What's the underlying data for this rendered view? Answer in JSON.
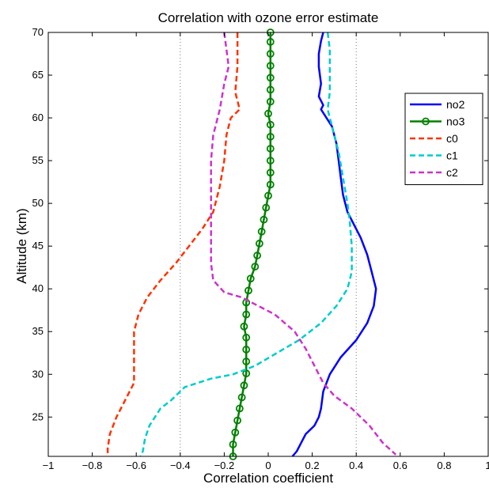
{
  "chart_data": {
    "type": "line",
    "title": "Correlation with ozone error estimate",
    "xlabel": "Correlation coefficient",
    "ylabel": "Altitude (km)",
    "xlim": [
      -1,
      1
    ],
    "ylim": [
      20.4,
      70
    ],
    "xticks": [
      -1,
      -0.8,
      -0.6,
      -0.4,
      -0.2,
      0,
      0.2,
      0.4,
      0.6,
      0.8,
      1
    ],
    "xtick_labels": [
      "−1",
      "−0.8",
      "−0.6",
      "−0.4",
      "−0.2",
      "0",
      "0.2",
      "0.4",
      "0.6",
      "0.8",
      "1"
    ],
    "yticks": [
      25,
      30,
      35,
      40,
      45,
      50,
      55,
      60,
      65,
      70
    ],
    "ytick_labels": [
      "25",
      "30",
      "35",
      "40",
      "45",
      "50",
      "55",
      "60",
      "65",
      "70"
    ],
    "vertical_reference_lines": [
      -0.4,
      0.4
    ],
    "grid": false,
    "legend_position": "top-right",
    "series": [
      {
        "name": "no2",
        "color": "#0000ff",
        "style": "solid",
        "marker": "none",
        "points": [
          [
            0.25,
            70
          ],
          [
            0.24,
            69
          ],
          [
            0.23,
            67.5
          ],
          [
            0.23,
            66
          ],
          [
            0.24,
            64
          ],
          [
            0.23,
            62.5
          ],
          [
            0.25,
            61.5
          ],
          [
            0.24,
            61
          ],
          [
            0.29,
            59
          ],
          [
            0.31,
            57
          ],
          [
            0.32,
            55
          ],
          [
            0.33,
            53
          ],
          [
            0.34,
            51
          ],
          [
            0.36,
            49
          ],
          [
            0.38,
            48
          ],
          [
            0.42,
            46
          ],
          [
            0.45,
            44
          ],
          [
            0.47,
            42
          ],
          [
            0.49,
            40
          ],
          [
            0.48,
            38
          ],
          [
            0.45,
            36
          ],
          [
            0.4,
            34
          ],
          [
            0.33,
            32
          ],
          [
            0.28,
            30
          ],
          [
            0.25,
            28
          ],
          [
            0.24,
            26
          ],
          [
            0.23,
            25
          ],
          [
            0.21,
            24
          ],
          [
            0.17,
            23
          ],
          [
            0.15,
            22
          ],
          [
            0.13,
            21
          ],
          [
            0.11,
            20.4
          ]
        ]
      },
      {
        "name": "no3",
        "color": "#008000",
        "style": "solid",
        "marker": "circle",
        "points": [
          [
            0.01,
            70
          ],
          [
            0.01,
            68.9
          ],
          [
            0.01,
            67.5
          ],
          [
            0.01,
            66.1
          ],
          [
            0.01,
            64.7
          ],
          [
            0.01,
            63.3
          ],
          [
            0.01,
            61.9
          ],
          [
            0,
            60.5
          ],
          [
            0.01,
            59.2
          ],
          [
            0.01,
            57.8
          ],
          [
            0.01,
            56.4
          ],
          [
            0.01,
            55
          ],
          [
            0.01,
            53.6
          ],
          [
            0.01,
            52.2
          ],
          [
            0,
            50.9
          ],
          [
            -0.01,
            49.5
          ],
          [
            -0.02,
            48.1
          ],
          [
            -0.03,
            46.7
          ],
          [
            -0.04,
            45.3
          ],
          [
            -0.05,
            43.9
          ],
          [
            -0.06,
            42.6
          ],
          [
            -0.08,
            41.2
          ],
          [
            -0.09,
            39.8
          ],
          [
            -0.1,
            38.4
          ],
          [
            -0.1,
            37
          ],
          [
            -0.11,
            35.6
          ],
          [
            -0.1,
            34.3
          ],
          [
            -0.1,
            32.9
          ],
          [
            -0.1,
            31.5
          ],
          [
            -0.1,
            30.1
          ],
          [
            -0.11,
            28.7
          ],
          [
            -0.12,
            27.3
          ],
          [
            -0.13,
            26
          ],
          [
            -0.14,
            24.6
          ],
          [
            -0.15,
            23.2
          ],
          [
            -0.16,
            21.8
          ],
          [
            -0.16,
            20.4
          ]
        ]
      },
      {
        "name": "c0",
        "color": "#ff3300",
        "style": "dashed",
        "marker": "none",
        "points": [
          [
            -0.14,
            70
          ],
          [
            -0.14,
            66
          ],
          [
            -0.15,
            63
          ],
          [
            -0.13,
            61
          ],
          [
            -0.17,
            60
          ],
          [
            -0.19,
            58
          ],
          [
            -0.2,
            55
          ],
          [
            -0.22,
            52
          ],
          [
            -0.25,
            49
          ],
          [
            -0.3,
            47
          ],
          [
            -0.36,
            45
          ],
          [
            -0.42,
            43
          ],
          [
            -0.49,
            41
          ],
          [
            -0.55,
            39
          ],
          [
            -0.59,
            37
          ],
          [
            -0.61,
            35
          ],
          [
            -0.61,
            32
          ],
          [
            -0.61,
            29
          ],
          [
            -0.65,
            27
          ],
          [
            -0.69,
            25
          ],
          [
            -0.72,
            23
          ],
          [
            -0.73,
            21.3
          ],
          [
            -0.73,
            20.4
          ]
        ]
      },
      {
        "name": "c1",
        "color": "#00cccc",
        "style": "dashed",
        "marker": "none",
        "points": [
          [
            0.27,
            70
          ],
          [
            0.28,
            68
          ],
          [
            0.28,
            65
          ],
          [
            0.28,
            63
          ],
          [
            0.27,
            61
          ],
          [
            0.3,
            58
          ],
          [
            0.32,
            56
          ],
          [
            0.34,
            53
          ],
          [
            0.36,
            50
          ],
          [
            0.37,
            48
          ],
          [
            0.38,
            45
          ],
          [
            0.38,
            42
          ],
          [
            0.36,
            40
          ],
          [
            0.31,
            38
          ],
          [
            0.24,
            36
          ],
          [
            0.14,
            34
          ],
          [
            0.04,
            32.5
          ],
          [
            -0.06,
            31
          ],
          [
            -0.16,
            30
          ],
          [
            -0.26,
            29.5
          ],
          [
            -0.38,
            28.5
          ],
          [
            -0.44,
            27
          ],
          [
            -0.49,
            26
          ],
          [
            -0.54,
            24
          ],
          [
            -0.56,
            22.5
          ],
          [
            -0.57,
            21
          ],
          [
            -0.58,
            20.4
          ]
        ]
      },
      {
        "name": "c2",
        "color": "#cc33cc",
        "style": "dashed",
        "marker": "none",
        "points": [
          [
            -0.2,
            70
          ],
          [
            -0.19,
            68
          ],
          [
            -0.18,
            66
          ],
          [
            -0.2,
            64
          ],
          [
            -0.22,
            61
          ],
          [
            -0.25,
            58
          ],
          [
            -0.26,
            55
          ],
          [
            -0.26,
            52
          ],
          [
            -0.26,
            49
          ],
          [
            -0.26,
            46
          ],
          [
            -0.26,
            43
          ],
          [
            -0.25,
            41
          ],
          [
            -0.2,
            39.6
          ],
          [
            -0.12,
            39
          ],
          [
            0.03,
            37
          ],
          [
            0.12,
            35
          ],
          [
            0.17,
            33
          ],
          [
            0.21,
            31
          ],
          [
            0.25,
            29
          ],
          [
            0.3,
            27.5
          ],
          [
            0.38,
            26
          ],
          [
            0.46,
            24
          ],
          [
            0.52,
            22
          ],
          [
            0.58,
            20.6
          ]
        ]
      }
    ]
  }
}
